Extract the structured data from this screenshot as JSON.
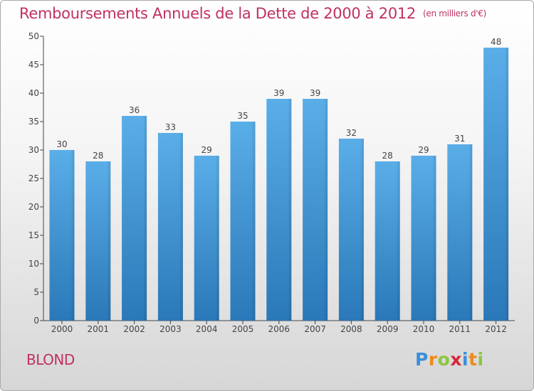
{
  "header": {
    "title": "Remboursements Annuels de la Dette de 2000 à 2012",
    "unit": "(en milliers d'€)"
  },
  "commune": "BLOND",
  "brand": {
    "letters": [
      {
        "char": "P",
        "color": "#3a8fd9"
      },
      {
        "char": "r",
        "color": "#f08a1c"
      },
      {
        "char": "o",
        "color": "#8cc63f"
      },
      {
        "char": "x",
        "color": "#d9263a"
      },
      {
        "char": "i",
        "color": "#3a8fd9"
      },
      {
        "char": "t",
        "color": "#f08a1c"
      },
      {
        "char": "i",
        "color": "#8cc63f"
      }
    ]
  },
  "chart_data": {
    "type": "bar",
    "categories": [
      "2000",
      "2001",
      "2002",
      "2003",
      "2004",
      "2005",
      "2006",
      "2007",
      "2008",
      "2009",
      "2010",
      "2011",
      "2012"
    ],
    "values": [
      30,
      28,
      36,
      33,
      29,
      35,
      39,
      39,
      32,
      28,
      29,
      31,
      48
    ],
    "ylim": [
      0,
      50
    ],
    "yticks": [
      0,
      5,
      10,
      15,
      20,
      25,
      30,
      35,
      40,
      45,
      50
    ],
    "grid": false,
    "legend": "none",
    "bar_color_top": "#5aaee8",
    "bar_color_bottom": "#2a78b8"
  }
}
